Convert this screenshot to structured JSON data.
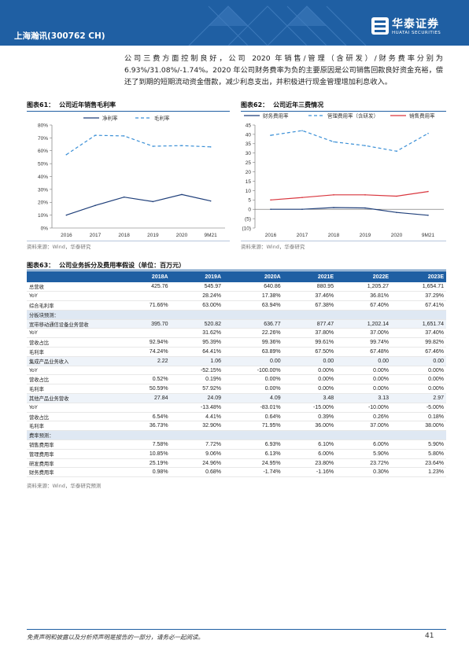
{
  "header": {
    "ticker": "上海瀚讯(300762 CH)",
    "logo_cn": "华泰证券",
    "logo_en": "HUATAI SECURITIES",
    "brand_color": "#1f5fa3"
  },
  "intro_text": "公司三费方面控制良好，公司 2020 年销售/管理（含研发）/财务费率分别为 6.93%/31.08%/-1.74%。2020 年公司财务费率为负的主要原因是公司销售回款良好资金充裕，偿还了到期的短期流动资金借款，减少利息支出，并积极进行现金管理增加利息收入。",
  "figures": [
    {
      "num": "图表61：",
      "title": "公司近年销售毛利率",
      "source": "资料来源：Wind，华泰研究"
    },
    {
      "num": "图表62：",
      "title": "公司近年三费情况",
      "source": "资料来源：Wind，华泰研究"
    }
  ],
  "chart_data": [
    {
      "type": "line",
      "categories": [
        "2016",
        "2017",
        "2018",
        "2019",
        "2020",
        "9M21"
      ],
      "ylim": [
        0,
        80
      ],
      "yticks": [
        "0%",
        "10%",
        "20%",
        "30%",
        "40%",
        "50%",
        "60%",
        "70%",
        "80%"
      ],
      "grid": false,
      "legend": "top",
      "series": [
        {
          "name": "净利率",
          "values": [
            10,
            17.5,
            24,
            20.5,
            26,
            21
          ],
          "color": "#1f3f7a",
          "style": "solid"
        },
        {
          "name": "毛利率",
          "values": [
            57,
            72,
            71.5,
            63.5,
            64,
            63
          ],
          "color": "#3a8fd6",
          "style": "dashed"
        }
      ]
    },
    {
      "type": "line",
      "categories": [
        "2016",
        "2017",
        "2018",
        "2019",
        "2020",
        "9M21"
      ],
      "ylim": [
        -10,
        45
      ],
      "yticks": [
        "(10)",
        "(5)",
        "0",
        "5",
        "10",
        "15",
        "20",
        "25",
        "30",
        "35",
        "40",
        "45"
      ],
      "grid": false,
      "legend": "top",
      "series": [
        {
          "name": "财务费用率",
          "values": [
            0,
            0,
            0.9,
            0.7,
            -1.7,
            -3.2
          ],
          "color": "#1f3f7a",
          "style": "solid"
        },
        {
          "name": "管理费用率（含研发）",
          "values": [
            39.5,
            42,
            36,
            34,
            31,
            40.5
          ],
          "color": "#3a8fd6",
          "style": "dashed"
        },
        {
          "name": "销售费用率",
          "values": [
            5,
            6.3,
            7.7,
            7.7,
            7,
            9.5
          ],
          "color": "#d9363e",
          "style": "solid"
        }
      ]
    }
  ],
  "table": {
    "num": "图表63：",
    "title": "公司业务拆分及费用率假设（单位：百万元）",
    "source": "资料来源：Wind，华泰研究预测",
    "columns": [
      "",
      "2018A",
      "2019A",
      "2020A",
      "2021E",
      "2022E",
      "2023E"
    ],
    "rows": [
      {
        "kind": "data",
        "cells": [
          "总营收",
          "425.76",
          "545.97",
          "640.86",
          "880.95",
          "1,205.27",
          "1,654.71"
        ]
      },
      {
        "kind": "data",
        "cells": [
          "YoY",
          "",
          "28.24%",
          "17.38%",
          "37.46%",
          "36.81%",
          "37.29%"
        ]
      },
      {
        "kind": "data",
        "cells": [
          "综合毛利率",
          "71.66%",
          "63.00%",
          "63.94%",
          "67.38%",
          "67.40%",
          "67.41%"
        ]
      },
      {
        "kind": "section",
        "cells": [
          "分板块预测："
        ]
      },
      {
        "kind": "shaded",
        "cells": [
          "宽带移动通信设备业务营收",
          "395.70",
          "520.82",
          "636.77",
          "877.47",
          "1,202.14",
          "1,651.74"
        ]
      },
      {
        "kind": "data",
        "cells": [
          "YoY",
          "",
          "31.62%",
          "22.26%",
          "37.80%",
          "37.00%",
          "37.40%"
        ]
      },
      {
        "kind": "data",
        "cells": [
          "营收占比",
          "92.94%",
          "95.39%",
          "99.36%",
          "99.61%",
          "99.74%",
          "99.82%"
        ]
      },
      {
        "kind": "data",
        "cells": [
          "毛利率",
          "74.24%",
          "64.41%",
          "63.89%",
          "67.50%",
          "67.48%",
          "67.46%"
        ]
      },
      {
        "kind": "shaded",
        "cells": [
          "集成产品业务收入",
          "2.22",
          "1.06",
          "0.00",
          "0.00",
          "0.00",
          "0.00"
        ]
      },
      {
        "kind": "data",
        "cells": [
          "YoY",
          "",
          "-52.15%",
          "-100.00%",
          "0.00%",
          "0.00%",
          "0.00%"
        ]
      },
      {
        "kind": "data",
        "cells": [
          "营收占比",
          "0.52%",
          "0.19%",
          "0.00%",
          "0.00%",
          "0.00%",
          "0.00%"
        ]
      },
      {
        "kind": "data",
        "cells": [
          "毛利率",
          "50.59%",
          "57.92%",
          "0.00%",
          "0.00%",
          "0.00%",
          "0.00%"
        ]
      },
      {
        "kind": "shaded",
        "cells": [
          "其他产品业务营收",
          "27.84",
          "24.09",
          "4.09",
          "3.48",
          "3.13",
          "2.97"
        ]
      },
      {
        "kind": "data",
        "cells": [
          "YoY",
          "",
          "-13.48%",
          "-83.01%",
          "-15.00%",
          "-10.00%",
          "-5.00%"
        ]
      },
      {
        "kind": "data",
        "cells": [
          "营收占比",
          "6.54%",
          "4.41%",
          "0.64%",
          "0.39%",
          "0.26%",
          "0.18%"
        ]
      },
      {
        "kind": "data",
        "cells": [
          "毛利率",
          "36.73%",
          "32.90%",
          "71.95%",
          "36.00%",
          "37.00%",
          "38.00%"
        ]
      },
      {
        "kind": "section",
        "cells": [
          "费率预测："
        ]
      },
      {
        "kind": "data",
        "cells": [
          "销售费用率",
          "7.58%",
          "7.72%",
          "6.93%",
          "6.10%",
          "6.00%",
          "5.90%"
        ]
      },
      {
        "kind": "data",
        "cells": [
          "管理费用率",
          "10.85%",
          "9.06%",
          "6.13%",
          "6.00%",
          "5.90%",
          "5.80%"
        ]
      },
      {
        "kind": "data",
        "cells": [
          "研发费用率",
          "25.19%",
          "24.96%",
          "24.95%",
          "23.80%",
          "23.72%",
          "23.64%"
        ]
      },
      {
        "kind": "data",
        "cells": [
          "财务费用率",
          "0.98%",
          "0.68%",
          "-1.74%",
          "-1.16%",
          "0.30%",
          "1.23%"
        ]
      }
    ]
  },
  "footer": {
    "note": "免责声明和披露以及分析师声明是报告的一部分，请务必一起阅读。",
    "page": "41"
  }
}
